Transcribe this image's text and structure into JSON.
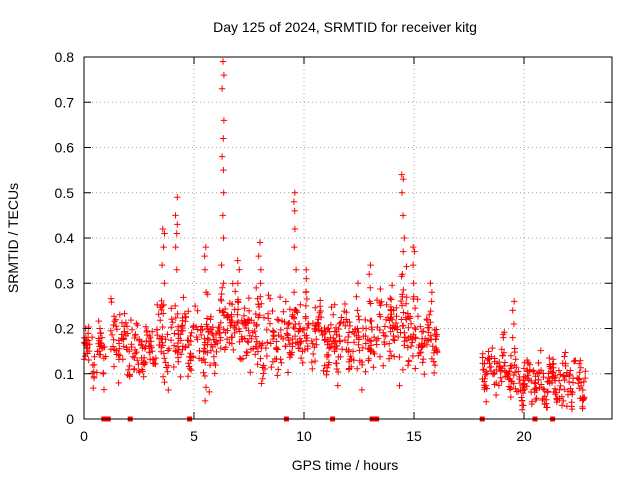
{
  "chart_data": {
    "type": "scatter",
    "title": "Day 125 of 2024, SRMTID for receiver kitg",
    "xlabel": "GPS time / hours",
    "ylabel": "SRMTID / TECUs",
    "xlim": [
      0,
      24
    ],
    "ylim": [
      0,
      0.8
    ],
    "xticks": [
      0,
      5,
      10,
      15,
      20
    ],
    "yticks": [
      0,
      0.1,
      0.2,
      0.3,
      0.4,
      0.5,
      0.6,
      0.7,
      0.8
    ],
    "grid": true,
    "marker": "+",
    "series_color": "#ff0000",
    "segments": [
      {
        "start": 0.0,
        "end": 1.0,
        "level": 0.14,
        "spread": 0.05
      },
      {
        "start": 1.2,
        "end": 2.0,
        "level": 0.17,
        "spread": 0.06
      },
      {
        "start": 2.0,
        "end": 3.1,
        "level": 0.15,
        "spread": 0.05
      },
      {
        "start": 3.1,
        "end": 4.8,
        "level": 0.18,
        "spread": 0.06
      },
      {
        "start": 4.8,
        "end": 6.0,
        "level": 0.17,
        "spread": 0.06
      },
      {
        "start": 6.0,
        "end": 7.2,
        "level": 0.21,
        "spread": 0.07
      },
      {
        "start": 7.2,
        "end": 9.0,
        "level": 0.18,
        "spread": 0.07
      },
      {
        "start": 9.0,
        "end": 10.8,
        "level": 0.19,
        "spread": 0.06
      },
      {
        "start": 10.8,
        "end": 13.2,
        "level": 0.17,
        "spread": 0.06
      },
      {
        "start": 13.2,
        "end": 15.2,
        "level": 0.2,
        "spread": 0.07
      },
      {
        "start": 15.2,
        "end": 16.1,
        "level": 0.18,
        "spread": 0.06
      },
      {
        "start": 18.1,
        "end": 19.5,
        "level": 0.11,
        "spread": 0.04
      },
      {
        "start": 19.5,
        "end": 21.0,
        "level": 0.08,
        "spread": 0.04
      },
      {
        "start": 21.0,
        "end": 22.8,
        "level": 0.08,
        "spread": 0.04
      }
    ],
    "spikes": [
      {
        "x": 3.6,
        "values": [
          0.25,
          0.3,
          0.34,
          0.38,
          0.41,
          0.42
        ]
      },
      {
        "x": 4.2,
        "values": [
          0.25,
          0.33,
          0.38,
          0.41,
          0.43,
          0.45,
          0.49
        ]
      },
      {
        "x": 5.5,
        "values": [
          0.28,
          0.33,
          0.36,
          0.38
        ]
      },
      {
        "x": 6.3,
        "values": [
          0.3,
          0.34,
          0.4,
          0.45,
          0.5,
          0.55,
          0.58,
          0.62,
          0.66,
          0.73,
          0.76,
          0.79
        ]
      },
      {
        "x": 7.0,
        "values": [
          0.26,
          0.3,
          0.33,
          0.35
        ]
      },
      {
        "x": 8.0,
        "values": [
          0.27,
          0.3,
          0.33,
          0.36,
          0.39
        ]
      },
      {
        "x": 9.6,
        "values": [
          0.28,
          0.33,
          0.38,
          0.42,
          0.46,
          0.48,
          0.5
        ]
      },
      {
        "x": 10.1,
        "values": [
          0.25,
          0.28,
          0.31,
          0.33
        ]
      },
      {
        "x": 12.4,
        "values": [
          0.24,
          0.27,
          0.3
        ]
      },
      {
        "x": 13.0,
        "values": [
          0.26,
          0.29,
          0.32,
          0.34
        ]
      },
      {
        "x": 14.5,
        "values": [
          0.27,
          0.32,
          0.37,
          0.4,
          0.45,
          0.5,
          0.53,
          0.54
        ]
      },
      {
        "x": 15.0,
        "values": [
          0.27,
          0.3,
          0.34,
          0.37,
          0.38
        ]
      },
      {
        "x": 15.8,
        "values": [
          0.26,
          0.28,
          0.3
        ]
      },
      {
        "x": 19.5,
        "values": [
          0.18,
          0.21,
          0.24,
          0.26
        ]
      }
    ],
    "dips": [
      {
        "x": 5.6,
        "values": [
          0.04,
          0.06,
          0.07
        ]
      },
      {
        "x": 20.0,
        "values": [
          0.03,
          0.04
        ]
      },
      {
        "x": 21.8,
        "values": [
          0.03,
          0.04
        ]
      }
    ],
    "zero_markers": [
      0.9,
      1.1,
      2.1,
      4.8,
      9.2,
      11.3,
      13.1,
      13.3,
      18.1,
      20.5,
      21.3
    ]
  }
}
